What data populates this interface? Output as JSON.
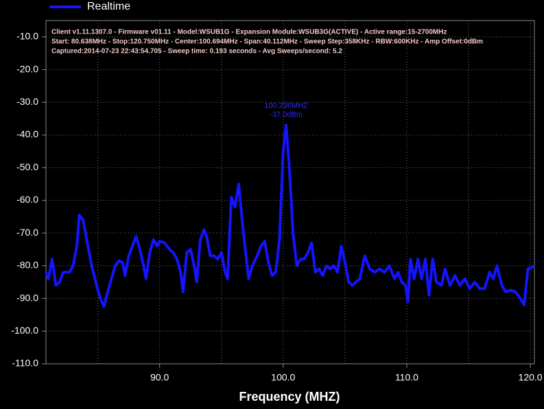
{
  "chart_data": {
    "type": "line",
    "info": [
      "Client v1.11.1307.0 - Firmware v01.11 - Model:WSUB1G - Expansion Module:WSUB3G(ACTIVE) - Active range:15-2700MHz",
      "Start: 80.638MHz - Stop:120.750MHz - Center:100.694MHz - Span:40.112MHz - Sweep Step:358KHz - RBW:600KHz - Amp Offset:0dBm",
      "Captured:2014-07-23 22:43:54.705 - Sweep time: 0.193 seconds - Avg Sweeps/second: 5.2"
    ],
    "xlabel": "Frequency (MHZ)",
    "annotation": {
      "x": 100.236,
      "y": -37.0,
      "lines": [
        "100.236MHZ",
        "-37.0dBm"
      ]
    },
    "legend": "top-left",
    "grid": true,
    "xlim": [
      80.8,
      120.33
    ],
    "ylim": [
      -110,
      -5
    ],
    "xticks": [
      {
        "value": 90,
        "label": "90.0"
      },
      {
        "value": 100,
        "label": "100.0"
      },
      {
        "value": 110,
        "label": "110.0"
      },
      {
        "value": 120,
        "label": "120.0"
      }
    ],
    "minor_xticks": [
      85,
      95,
      105,
      115
    ],
    "yticks": [
      {
        "value": -10,
        "label": "-10.0"
      },
      {
        "value": -20,
        "label": "-20.0"
      },
      {
        "value": -30,
        "label": "-30.0"
      },
      {
        "value": -40,
        "label": "-40.0"
      },
      {
        "value": -50,
        "label": "-50.0"
      },
      {
        "value": -60,
        "label": "-60.0"
      },
      {
        "value": -70,
        "label": "-70.0"
      },
      {
        "value": -80,
        "label": "-80.0"
      },
      {
        "value": -90,
        "label": "-90.0"
      },
      {
        "value": -100,
        "label": "-100.0"
      },
      {
        "value": -110,
        "label": "-110.0"
      }
    ],
    "x": [
      80.8,
      81.0,
      81.3,
      81.6,
      81.9,
      82.2,
      82.7,
      83.0,
      83.3,
      83.5,
      83.8,
      84.1,
      84.5,
      84.9,
      85.2,
      85.5,
      85.8,
      86.1,
      86.4,
      86.7,
      87.0,
      87.2,
      87.5,
      87.8,
      88.1,
      88.4,
      88.7,
      88.9,
      89.2,
      89.5,
      89.8,
      90.0,
      90.4,
      90.8,
      91.1,
      91.4,
      91.7,
      91.9,
      92.2,
      92.5,
      92.8,
      93.0,
      93.3,
      93.6,
      93.8,
      94.1,
      94.4,
      94.7,
      95.0,
      95.3,
      95.5,
      95.8,
      96.1,
      96.4,
      96.7,
      96.9,
      97.2,
      97.5,
      97.9,
      98.2,
      98.5,
      98.8,
      99.1,
      99.4,
      99.7,
      100.0,
      100.236,
      100.5,
      100.8,
      101.1,
      101.4,
      101.7,
      102.0,
      102.3,
      102.6,
      102.9,
      103.2,
      103.5,
      103.8,
      104.1,
      104.4,
      104.7,
      105.0,
      105.3,
      105.6,
      105.9,
      106.2,
      106.6,
      107.0,
      107.4,
      107.8,
      108.2,
      108.6,
      109.0,
      109.3,
      109.6,
      109.9,
      110.1,
      110.3,
      110.6,
      110.9,
      111.2,
      111.5,
      111.8,
      112.1,
      112.4,
      112.8,
      113.1,
      113.5,
      113.9,
      114.3,
      114.7,
      115.1,
      115.5,
      115.9,
      116.3,
      116.7,
      117.0,
      117.3,
      117.7,
      118.0,
      118.4,
      118.8,
      119.2,
      119.5,
      119.8,
      120.1,
      120.33
    ],
    "series": [
      {
        "name": "Realtime",
        "color": "#1414ff",
        "values": [
          -82,
          -84,
          -78,
          -86,
          -85,
          -82,
          -82,
          -80,
          -74,
          -64.5,
          -66,
          -72,
          -80,
          -86,
          -90,
          -92.5,
          -88,
          -84,
          -80,
          -78.5,
          -79,
          -83,
          -77,
          -74,
          -71,
          -75,
          -80,
          -84,
          -76,
          -72,
          -74,
          -72.5,
          -73,
          -75,
          -76,
          -78,
          -82,
          -88,
          -76,
          -75,
          -80,
          -85,
          -72,
          -69,
          -71,
          -77,
          -77,
          -78,
          -76,
          -82,
          -84,
          -59,
          -62,
          -55,
          -67,
          -74,
          -84,
          -80,
          -77,
          -74,
          -72.5,
          -79,
          -83,
          -82,
          -72,
          -45,
          -37,
          -50,
          -70,
          -80,
          -78,
          -78,
          -76,
          -73,
          -82,
          -81,
          -83,
          -80,
          -81,
          -80,
          -82,
          -74,
          -79,
          -85,
          -86,
          -85,
          -84,
          -77,
          -81,
          -82,
          -81,
          -82,
          -80,
          -84,
          -82,
          -85,
          -86,
          -91,
          -78,
          -84,
          -78,
          -84,
          -78,
          -89,
          -78,
          -85,
          -86,
          -81,
          -86,
          -83,
          -86,
          -84,
          -87,
          -85,
          -87,
          -87,
          -82,
          -84,
          -80,
          -86,
          -88,
          -87.5,
          -88,
          -90,
          -92,
          -81,
          -80.5,
          -80
        ]
      }
    ]
  }
}
